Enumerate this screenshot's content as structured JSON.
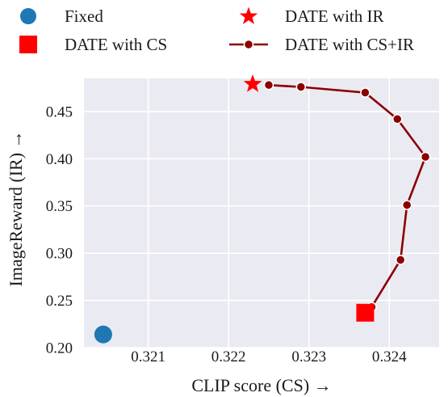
{
  "chart_data": {
    "type": "scatter",
    "xlabel": "CLIP score (CS) →",
    "ylabel": "ImageReward (IR) →",
    "xlim": [
      0.3202,
      0.32462
    ],
    "ylim": [
      0.2,
      0.485
    ],
    "xticks": [
      0.321,
      0.322,
      0.323,
      0.324
    ],
    "xtick_labels": [
      "0.321",
      "0.322",
      "0.323",
      "0.324"
    ],
    "yticks": [
      0.2,
      0.25,
      0.3,
      0.35,
      0.4,
      0.45
    ],
    "ytick_labels": [
      "0.20",
      "0.25",
      "0.30",
      "0.35",
      "0.40",
      "0.45"
    ],
    "grid": true,
    "background": "#eaeaf2",
    "legend_placement": "top, above plot (2 columns)",
    "series": [
      {
        "name": "Fixed",
        "marker": "circle",
        "color": "#1f77b4",
        "x": [
          0.32044
        ],
        "y": [
          0.214
        ]
      },
      {
        "name": "DATE with IR",
        "marker": "star",
        "color": "#ff0000",
        "x": [
          0.3223
        ],
        "y": [
          0.479
        ]
      },
      {
        "name": "DATE with CS",
        "marker": "square",
        "color": "#ff0000",
        "x": [
          0.3237
        ],
        "y": [
          0.237
        ]
      },
      {
        "name": "DATE with CS+IR",
        "marker": "line-dot",
        "color": "#8b0000",
        "x": [
          0.32378,
          0.32414,
          0.32422,
          0.32445,
          0.3241,
          0.3237,
          0.3229,
          0.3225
        ],
        "y": [
          0.243,
          0.293,
          0.351,
          0.402,
          0.442,
          0.47,
          0.476,
          0.478
        ]
      }
    ]
  }
}
